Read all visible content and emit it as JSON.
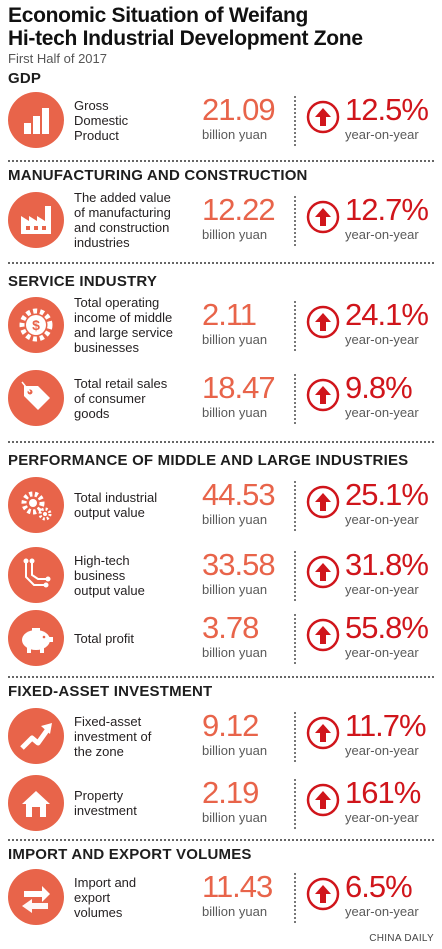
{
  "header": {
    "title": "Economic Situation of Weifang\nHi-tech Industrial Development Zone",
    "subtitle": "First Half of 2017"
  },
  "sections": [
    {
      "title": "GDP",
      "rows": [
        {
          "icon": "bar-chart-icon",
          "desc": "Gross\nDomestic\nProduct",
          "value": "21.09",
          "unit": "billion yuan",
          "change": "12.5%",
          "change_label": "year-on-year"
        }
      ]
    },
    {
      "title": "MANUFACTURING AND CONSTRUCTION",
      "rows": [
        {
          "icon": "factory-icon",
          "desc": "The added value\nof manufacturing\nand construction\nindustries",
          "value": "12.22",
          "unit": "billion yuan",
          "change": "12.7%",
          "change_label": "year-on-year"
        }
      ]
    },
    {
      "title": "SERVICE INDUSTRY",
      "rows": [
        {
          "icon": "dollar-gear-icon",
          "desc": "Total operating\nincome of middle\nand large service\nbusinesses",
          "value": "2.11",
          "unit": "billion yuan",
          "change": "24.1%",
          "change_label": "year-on-year"
        },
        {
          "icon": "price-tag-icon",
          "desc": "Total retail sales\nof consumer\ngoods",
          "value": "18.47",
          "unit": "billion yuan",
          "change": "9.8%",
          "change_label": "year-on-year"
        }
      ]
    },
    {
      "title": "PERFORMANCE OF MIDDLE AND LARGE INDUSTRIES",
      "rows": [
        {
          "icon": "gears-icon",
          "desc": "Total industrial\noutput value",
          "value": "44.53",
          "unit": "billion yuan",
          "change": "25.1%",
          "change_label": "year-on-year"
        },
        {
          "icon": "circuit-board-icon",
          "desc": "High-tech\nbusiness\noutput value",
          "value": "33.58",
          "unit": "billion yuan",
          "change": "31.8%",
          "change_label": "year-on-year"
        },
        {
          "icon": "piggy-bank-icon",
          "desc": "Total profit",
          "value": "3.78",
          "unit": "billion yuan",
          "change": "55.8%",
          "change_label": "year-on-year"
        }
      ]
    },
    {
      "title": "FIXED-ASSET INVESTMENT",
      "rows": [
        {
          "icon": "trend-arrow-icon",
          "desc": "Fixed-asset\ninvestment of\nthe zone",
          "value": "9.12",
          "unit": "billion yuan",
          "change": "11.7%",
          "change_label": "year-on-year"
        },
        {
          "icon": "house-icon",
          "desc": "Property\ninvestment",
          "value": "2.19",
          "unit": "billion yuan",
          "change": "161%",
          "change_label": "year-on-year"
        }
      ]
    },
    {
      "title": "IMPORT AND EXPORT VOLUMES",
      "rows": [
        {
          "icon": "exchange-arrows-icon",
          "desc": "Import and\nexport\nvolumes",
          "value": "11.43",
          "unit": "billion yuan",
          "change": "6.5%",
          "change_label": "year-on-year"
        }
      ]
    }
  ],
  "footer": {
    "credit": "CHINA DAILY"
  },
  "colors": {
    "accent": "#e8644a",
    "change_red": "#d0151b",
    "text": "#231f20"
  }
}
